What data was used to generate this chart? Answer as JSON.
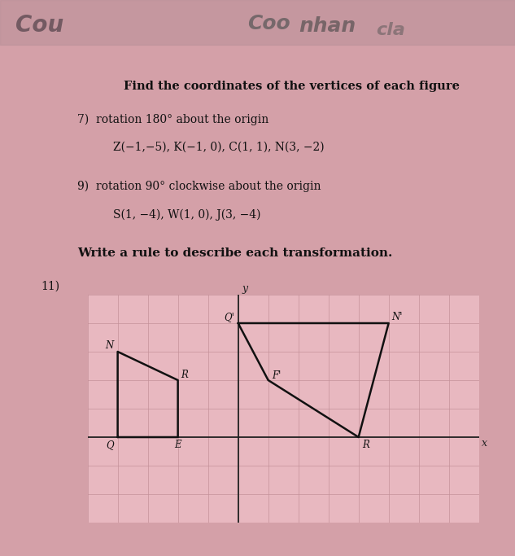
{
  "bg_color": "#d4a0a8",
  "paper_color": "#e8b8c0",
  "title": "Find the coordinates of the vertices of each figure",
  "p7_header": "7)  rotation 180° about the origin",
  "p7_coords": "Z(−1,−5), K(−1, 0), C(1, 1), N(3, −2)",
  "p9_header": "9)  rotation 90° clockwise about the origin",
  "p9_coords": "S(1, −4), W(1, 0), J(3, −4)",
  "write_rule": "Write a rule to describe each transformation.",
  "p11_label": "11)",
  "graph": {
    "xlim": [
      -5,
      8
    ],
    "ylim": [
      -3,
      5
    ],
    "grid_color": "#c49098",
    "axis_color": "#222222",
    "shape1_verts": [
      [
        -4,
        0
      ],
      [
        -4,
        3
      ],
      [
        -2,
        2
      ],
      [
        -2,
        0
      ]
    ],
    "shape1_labels": [
      "Q",
      "N",
      "R",
      "E"
    ],
    "shape1_offsets": [
      [
        -0.25,
        -0.28
      ],
      [
        -0.28,
        0.2
      ],
      [
        0.22,
        0.18
      ],
      [
        0.0,
        -0.28
      ]
    ],
    "shape2_verts": [
      [
        0,
        4
      ],
      [
        5,
        4
      ],
      [
        4,
        0
      ],
      [
        1,
        2
      ]
    ],
    "shape2_labels": [
      "Q'",
      "N'",
      "R",
      "F'"
    ],
    "shape2_offsets": [
      [
        -0.3,
        0.22
      ],
      [
        0.28,
        0.22
      ],
      [
        0.25,
        -0.28
      ],
      [
        0.28,
        0.15
      ]
    ],
    "line_color": "#111111",
    "label_color": "#111111"
  }
}
